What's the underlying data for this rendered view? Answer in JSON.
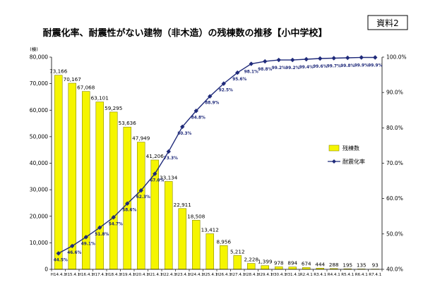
{
  "header": {
    "title": "耐震化率、耐震性がない建物（非木造）の残棟数の推移【小中学校】",
    "badge": "資料2"
  },
  "colors": {
    "bar_fill": "#f5f500",
    "bar_stroke": "#8c8c00",
    "line": "#1f2a7a"
  },
  "chart_data": {
    "type": "bar",
    "title": "耐震化率、耐震性がない建物（非木造）の残棟数の推移【小中学校】",
    "y_unit_label": "(棟)",
    "categories": [
      "H14.4.1",
      "H15.4.1",
      "H16.4.1",
      "H17.4.1",
      "H18.4.1",
      "H19.4.1",
      "H20.4.1",
      "H21.4.1",
      "H22.4.1",
      "H23.4.1",
      "H24.4.1",
      "H25.4.1",
      "H26.4.1",
      "H27.4.1",
      "H28.4.1",
      "H29.4.1",
      "H30.4.1",
      "H31.4.1",
      "R2.4.1",
      "R3.4.1",
      "R4.4.1",
      "R5.4.1",
      "R6.4.1",
      "R7.4.1"
    ],
    "y_ticks": [
      "0",
      "10,000",
      "20,000",
      "30,000",
      "40,000",
      "50,000",
      "60,000",
      "70,000",
      "80,000"
    ],
    "y2_ticks": [
      "40.0%",
      "50.0%",
      "60.0%",
      "70.0%",
      "80.0%",
      "90.0%",
      "100.0%"
    ],
    "ylim": [
      0,
      80000
    ],
    "y2lim": [
      40,
      100
    ],
    "grid": false,
    "legend_position": "right",
    "series": [
      {
        "name": "残棟数",
        "type": "bar",
        "axis": "left",
        "values": [
          73166,
          70167,
          67068,
          63101,
          59295,
          53636,
          47949,
          41206,
          33134,
          22911,
          18508,
          13412,
          8956,
          5212,
          2228,
          1399,
          978,
          894,
          674,
          444,
          288,
          195,
          135,
          93
        ],
        "labels": [
          "73,166",
          "70,167",
          "67,068",
          "63,101",
          "59,295",
          "53,636",
          "47,949",
          "41,206",
          "33,134",
          "22,911",
          "18,508",
          "13,412",
          "8,956",
          "5,212",
          "2,228",
          "1,399",
          "978",
          "894",
          "674",
          "444",
          "288",
          "195",
          "135",
          "93"
        ]
      },
      {
        "name": "耐震化率",
        "type": "line",
        "axis": "right",
        "values": [
          44.5,
          46.6,
          49.1,
          51.8,
          54.7,
          58.6,
          62.3,
          67.0,
          73.3,
          80.3,
          84.8,
          88.9,
          92.5,
          95.6,
          98.1,
          98.8,
          99.2,
          99.2,
          99.4,
          99.6,
          99.7,
          99.8,
          99.9,
          99.9
        ],
        "labels": [
          "44.5%",
          "46.6%",
          "49.1%",
          "51.8%",
          "54.7%",
          "58.6%",
          "62.3%",
          "67.0%",
          "73.3%",
          "80.3%",
          "84.8%",
          "88.9%",
          "92.5%",
          "95.6%",
          "98.1%",
          "98.8%",
          "99.2%",
          "99.2%",
          "99.4%",
          "99.6%",
          "99.7%",
          "99.8%",
          "99.9%",
          "99.9%"
        ]
      }
    ]
  }
}
